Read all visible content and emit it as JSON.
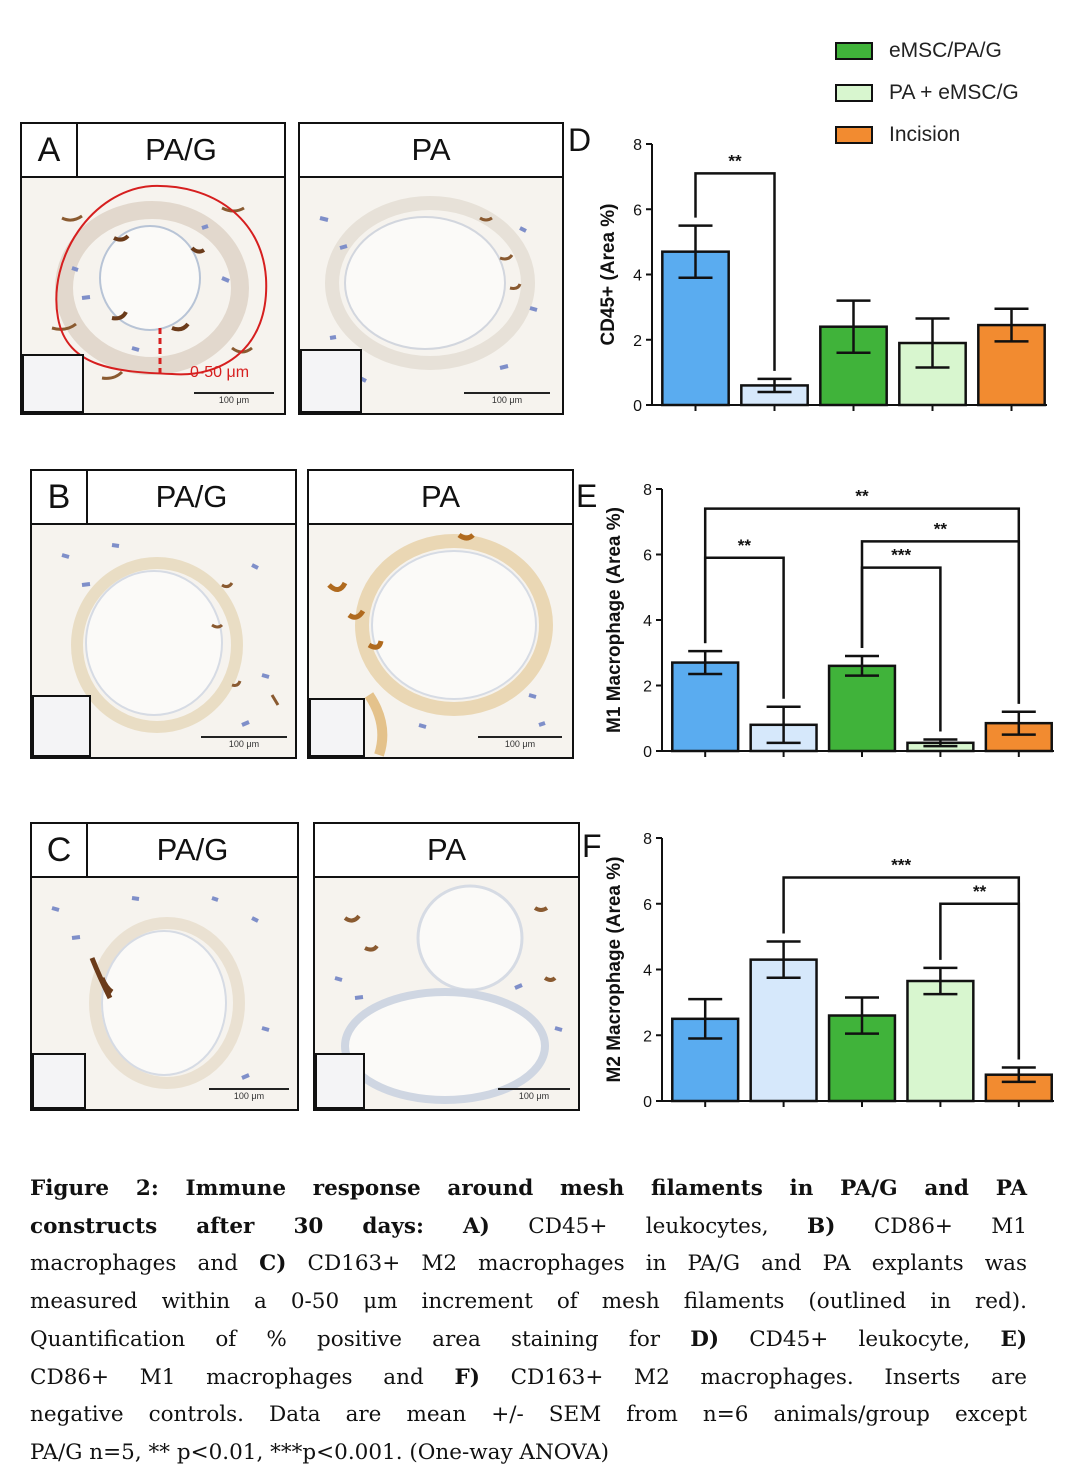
{
  "legend": {
    "items": [
      {
        "label": "eMSC/PA/G",
        "color": "#40b33a"
      },
      {
        "label": "PA + eMSC/G",
        "color": "#d8f6cf"
      },
      {
        "label": "Incision",
        "color": "#f28b30"
      }
    ]
  },
  "panels": {
    "a_left": {
      "letter": "A",
      "title": "PA/G",
      "scale": "100 μm",
      "outline_label": "0-50 μm"
    },
    "a_right": {
      "title": "PA",
      "scale": "100 μm"
    },
    "b_left": {
      "letter": "B",
      "title": "PA/G",
      "scale": "100 μm"
    },
    "b_right": {
      "title": "PA",
      "scale": "100 μm"
    },
    "c_left": {
      "letter": "C",
      "title": "PA/G",
      "scale": "100 μm"
    },
    "c_right": {
      "title": "PA",
      "scale": "100 μm"
    }
  },
  "colors": {
    "bar1": "#5aacf0",
    "bar2": "#d6e8fb",
    "bar3": "#40b33a",
    "bar4": "#d8f6cf",
    "bar5": "#f28b30",
    "outline": "#d61f1f"
  },
  "chart_data": [
    {
      "letter": "D",
      "type": "bar",
      "ylabel": "CD45+ (Area %)",
      "ylim": [
        0,
        8
      ],
      "yticks": [
        0,
        2,
        4,
        6,
        8
      ],
      "values": [
        4.7,
        0.6,
        2.4,
        1.9,
        2.45
      ],
      "errors": [
        0.8,
        0.2,
        0.8,
        0.75,
        0.5
      ],
      "significance": [
        {
          "from": 0,
          "to": 1,
          "label": "**",
          "y": 7.1
        }
      ]
    },
    {
      "letter": "E",
      "type": "bar",
      "ylabel": "M1 Macrophage (Area %)",
      "ylim": [
        0,
        8
      ],
      "yticks": [
        0,
        2,
        4,
        6,
        8
      ],
      "values": [
        2.7,
        0.8,
        2.6,
        0.25,
        0.85
      ],
      "errors": [
        0.35,
        0.55,
        0.3,
        0.1,
        0.35
      ],
      "significance": [
        {
          "from": 0,
          "to": 1,
          "label": "**",
          "y": 5.9
        },
        {
          "from": 2,
          "to": 3,
          "label": "***",
          "y": 5.6
        },
        {
          "from": 2,
          "to": 4,
          "label": "**",
          "y": 6.4
        },
        {
          "from": 0,
          "to": 4,
          "label": "**",
          "y": 7.4
        }
      ]
    },
    {
      "letter": "F",
      "type": "bar",
      "ylabel": "M2 Macrophage (Area %)",
      "ylim": [
        0,
        8
      ],
      "yticks": [
        0,
        2,
        4,
        6,
        8
      ],
      "values": [
        2.5,
        4.3,
        2.6,
        3.65,
        0.8
      ],
      "errors": [
        0.6,
        0.55,
        0.55,
        0.4,
        0.22
      ],
      "significance": [
        {
          "from": 3,
          "to": 4,
          "label": "**",
          "y": 6.0
        },
        {
          "from": 1,
          "to": 4,
          "label": "***",
          "y": 6.8
        }
      ]
    }
  ],
  "caption": {
    "lines": [
      {
        "segments": [
          {
            "t": "Figure 2: Immune response around mesh filaments in PA/G and PA",
            "b": true
          }
        ]
      },
      {
        "segments": [
          {
            "t": "constructs after 30 days: A)",
            "b": true
          },
          {
            "t": " CD45+ leukocytes, ",
            "b": false
          },
          {
            "t": "B)",
            "b": true
          },
          {
            "t": " CD86+ M1",
            "b": false
          }
        ]
      },
      {
        "segments": [
          {
            "t": "macrophages and ",
            "b": false
          },
          {
            "t": "C)",
            "b": true
          },
          {
            "t": " CD163+ M2 macrophages in PA/G and PA explants was",
            "b": false
          }
        ]
      },
      {
        "segments": [
          {
            "t": "measured within a 0-50 μm increment of mesh filaments (outlined in red).",
            "b": false
          }
        ]
      },
      {
        "segments": [
          {
            "t": "Quantification of % positive area staining for ",
            "b": false
          },
          {
            "t": "D)",
            "b": true
          },
          {
            "t": " CD45+ leukocyte, ",
            "b": false
          },
          {
            "t": "E)",
            "b": true
          }
        ]
      },
      {
        "segments": [
          {
            "t": "CD86+ M1 macrophages and ",
            "b": false
          },
          {
            "t": "F)",
            "b": true
          },
          {
            "t": " CD163+ M2 macrophages. Inserts are",
            "b": false
          }
        ]
      },
      {
        "segments": [
          {
            "t": "negative controls. Data are mean +/- SEM from n=6 animals/group except",
            "b": false
          }
        ]
      },
      {
        "segments": [
          {
            "t": "PA/G n=5, ** p<0.01, ***p<0.001. (One-way ANOVA)",
            "b": false
          }
        ]
      }
    ]
  }
}
